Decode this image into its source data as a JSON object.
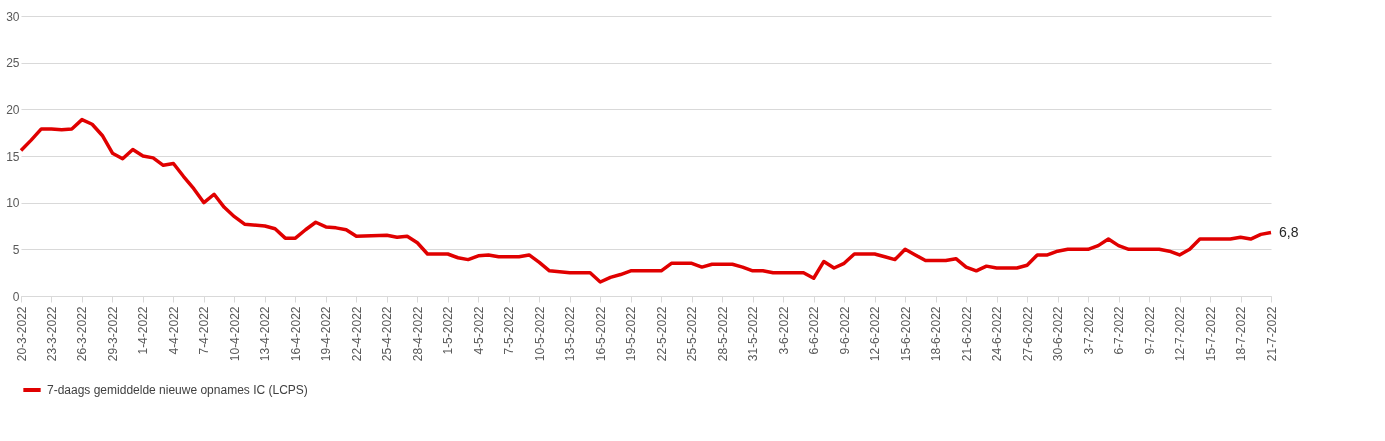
{
  "chart_data": {
    "type": "line",
    "legend": "bottom",
    "grid": "y",
    "ylim": [
      0,
      30
    ],
    "yticks": [
      0,
      5,
      10,
      15,
      20,
      25,
      30
    ],
    "xlim": [
      "2022-03-20",
      "2022-07-21"
    ],
    "xticks": [
      {
        "value": "2022-03-20",
        "label": "20-3-2022"
      },
      {
        "value": "2022-03-23",
        "label": "23-3-2022"
      },
      {
        "value": "2022-03-26",
        "label": "26-3-2022"
      },
      {
        "value": "2022-03-29",
        "label": "29-3-2022"
      },
      {
        "value": "2022-04-01",
        "label": "1-4-2022"
      },
      {
        "value": "2022-04-04",
        "label": "4-4-2022"
      },
      {
        "value": "2022-04-07",
        "label": "7-4-2022"
      },
      {
        "value": "2022-04-10",
        "label": "10-4-2022"
      },
      {
        "value": "2022-04-13",
        "label": "13-4-2022"
      },
      {
        "value": "2022-04-16",
        "label": "16-4-2022"
      },
      {
        "value": "2022-04-19",
        "label": "19-4-2022"
      },
      {
        "value": "2022-04-22",
        "label": "22-4-2022"
      },
      {
        "value": "2022-04-25",
        "label": "25-4-2022"
      },
      {
        "value": "2022-04-28",
        "label": "28-4-2022"
      },
      {
        "value": "2022-05-01",
        "label": "1-5-2022"
      },
      {
        "value": "2022-05-04",
        "label": "4-5-2022"
      },
      {
        "value": "2022-05-07",
        "label": "7-5-2022"
      },
      {
        "value": "2022-05-10",
        "label": "10-5-2022"
      },
      {
        "value": "2022-05-13",
        "label": "13-5-2022"
      },
      {
        "value": "2022-05-16",
        "label": "16-5-2022"
      },
      {
        "value": "2022-05-19",
        "label": "19-5-2022"
      },
      {
        "value": "2022-05-22",
        "label": "22-5-2022"
      },
      {
        "value": "2022-05-25",
        "label": "25-5-2022"
      },
      {
        "value": "2022-05-28",
        "label": "28-5-2022"
      },
      {
        "value": "2022-05-31",
        "label": "31-5-2022"
      },
      {
        "value": "2022-06-03",
        "label": "3-6-2022"
      },
      {
        "value": "2022-06-06",
        "label": "6-6-2022"
      },
      {
        "value": "2022-06-09",
        "label": "9-6-2022"
      },
      {
        "value": "2022-06-12",
        "label": "12-6-2022"
      },
      {
        "value": "2022-06-15",
        "label": "15-6-2022"
      },
      {
        "value": "2022-06-18",
        "label": "18-6-2022"
      },
      {
        "value": "2022-06-21",
        "label": "21-6-2022"
      },
      {
        "value": "2022-06-24",
        "label": "24-6-2022"
      },
      {
        "value": "2022-06-27",
        "label": "27-6-2022"
      },
      {
        "value": "2022-06-30",
        "label": "30-6-2022"
      },
      {
        "value": "2022-07-03",
        "label": "3-7-2022"
      },
      {
        "value": "2022-07-06",
        "label": "6-7-2022"
      },
      {
        "value": "2022-07-09",
        "label": "9-7-2022"
      },
      {
        "value": "2022-07-12",
        "label": "12-7-2022"
      },
      {
        "value": "2022-07-15",
        "label": "15-7-2022"
      },
      {
        "value": "2022-07-18",
        "label": "18-7-2022"
      },
      {
        "value": "2022-07-21",
        "label": "21-7-2022"
      }
    ],
    "x": [
      "2022-03-20",
      "2022-03-21",
      "2022-03-22",
      "2022-03-23",
      "2022-03-24",
      "2022-03-25",
      "2022-03-26",
      "2022-03-27",
      "2022-03-28",
      "2022-03-29",
      "2022-03-30",
      "2022-03-31",
      "2022-04-01",
      "2022-04-02",
      "2022-04-03",
      "2022-04-04",
      "2022-04-05",
      "2022-04-06",
      "2022-04-07",
      "2022-04-08",
      "2022-04-09",
      "2022-04-10",
      "2022-04-11",
      "2022-04-13",
      "2022-04-14",
      "2022-04-15",
      "2022-04-16",
      "2022-04-17",
      "2022-04-18",
      "2022-04-19",
      "2022-04-20",
      "2022-04-21",
      "2022-04-22",
      "2022-04-25",
      "2022-04-26",
      "2022-04-27",
      "2022-04-28",
      "2022-04-29",
      "2022-05-01",
      "2022-05-02",
      "2022-05-03",
      "2022-05-04",
      "2022-05-05",
      "2022-05-06",
      "2022-05-08",
      "2022-05-09",
      "2022-05-10",
      "2022-05-11",
      "2022-05-12",
      "2022-05-13",
      "2022-05-15",
      "2022-05-16",
      "2022-05-17",
      "2022-05-18",
      "2022-05-19",
      "2022-05-22",
      "2022-05-23",
      "2022-05-25",
      "2022-05-26",
      "2022-05-27",
      "2022-05-29",
      "2022-05-30",
      "2022-05-31",
      "2022-06-01",
      "2022-06-02",
      "2022-06-05",
      "2022-06-06",
      "2022-06-07",
      "2022-06-08",
      "2022-06-09",
      "2022-06-10",
      "2022-06-12",
      "2022-06-13",
      "2022-06-14",
      "2022-06-15",
      "2022-06-16",
      "2022-06-17",
      "2022-06-19",
      "2022-06-20",
      "2022-06-21",
      "2022-06-22",
      "2022-06-23",
      "2022-06-24",
      "2022-06-26",
      "2022-06-27",
      "2022-06-28",
      "2022-06-29",
      "2022-06-30",
      "2022-07-01",
      "2022-07-03",
      "2022-07-04",
      "2022-07-05",
      "2022-07-06",
      "2022-07-07",
      "2022-07-10",
      "2022-07-11",
      "2022-07-12",
      "2022-07-13",
      "2022-07-14",
      "2022-07-17",
      "2022-07-18",
      "2022-07-19",
      "2022-07-20",
      "2022-07-21"
    ],
    "series": [
      {
        "name": "7-daags gemiddelde nieuwe opnames IC (LCPS)",
        "color": "#e00000",
        "values": [
          15.6,
          16.7,
          17.9,
          17.9,
          17.8,
          17.9,
          18.9,
          18.4,
          17.2,
          15.3,
          14.7,
          15.7,
          15.0,
          14.8,
          14.0,
          14.2,
          12.8,
          11.5,
          10.0,
          10.9,
          9.5,
          8.5,
          7.7,
          7.5,
          7.2,
          6.2,
          6.2,
          7.1,
          7.9,
          7.4,
          7.3,
          7.1,
          6.4,
          6.5,
          6.3,
          6.4,
          5.7,
          4.5,
          4.5,
          4.1,
          3.9,
          4.3,
          4.4,
          4.2,
          4.2,
          4.4,
          3.6,
          2.7,
          2.6,
          2.5,
          2.5,
          1.5,
          2.0,
          2.3,
          2.7,
          2.7,
          3.5,
          3.5,
          3.1,
          3.4,
          3.4,
          3.1,
          2.7,
          2.7,
          2.5,
          2.5,
          1.9,
          3.7,
          3.0,
          3.5,
          4.5,
          4.5,
          4.2,
          3.9,
          5.0,
          4.4,
          3.8,
          3.8,
          4.0,
          3.1,
          2.7,
          3.2,
          3.0,
          3.0,
          3.3,
          4.4,
          4.4,
          4.8,
          5.0,
          5.0,
          5.4,
          6.1,
          5.4,
          5.0,
          5.0,
          4.8,
          4.4,
          5.0,
          6.1,
          6.1,
          6.3,
          6.1,
          6.6,
          6.8
        ]
      }
    ],
    "annotations": [
      {
        "text": "6,8",
        "x": "2022-07-21",
        "y": 6.8
      }
    ]
  }
}
